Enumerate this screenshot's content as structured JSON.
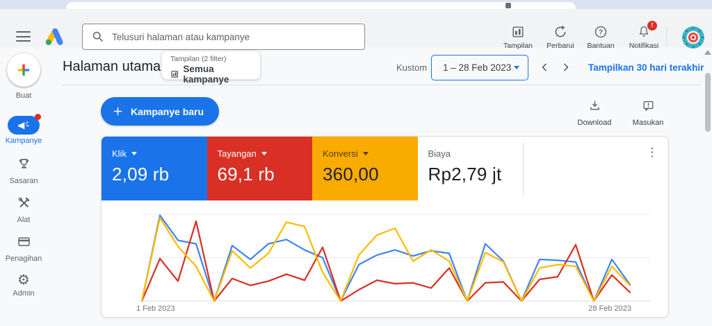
{
  "topbar": {
    "search_placeholder": "Telusuri halaman atau kampanye",
    "actions": [
      {
        "label": "Tampilan"
      },
      {
        "label": "Perbarui"
      },
      {
        "label": "Bantuan"
      },
      {
        "label": "Notifikasi",
        "badge": "!"
      }
    ]
  },
  "sidebar": {
    "items": [
      {
        "label": "Buat"
      },
      {
        "label": "Kampanye",
        "active": true
      },
      {
        "label": "Sasaran"
      },
      {
        "label": "Alat"
      },
      {
        "label": "Penagihan"
      },
      {
        "label": "Admin"
      }
    ]
  },
  "header": {
    "title": "Halaman utama",
    "chip_small": "Tampilan (2 filter)",
    "chip_main": "Semua kampanye",
    "custom_label": "Kustom",
    "date_range": "1 – 28 Feb 2023",
    "show_last_link": "Tampilkan 30 hari terakhir"
  },
  "toolbar": {
    "new_campaign": "Kampanye baru",
    "download": "Download",
    "feedback": "Masukan"
  },
  "scorecards": [
    {
      "label": "Klik",
      "value": "2,09 rb",
      "color": "#1a73e8",
      "has_caret": true
    },
    {
      "label": "Tayangan",
      "value": "69,1 rb",
      "color": "#d93025",
      "has_caret": true
    },
    {
      "label": "Konversi",
      "value": "360,00",
      "color": "#f9ab00",
      "has_caret": true
    },
    {
      "label": "Biaya",
      "value": "Rp2,79 jt",
      "color": "#ffffff",
      "has_caret": false
    }
  ],
  "colors": {
    "accent_blue": "#1a73e8",
    "line_blue": "#4285f4",
    "line_red": "#d93025",
    "line_yellow": "#fbbc04",
    "badge_red": "#d93025"
  },
  "chart_data": {
    "type": "line",
    "title": "",
    "x_days": [
      1,
      2,
      3,
      4,
      5,
      6,
      7,
      8,
      9,
      10,
      11,
      12,
      13,
      14,
      15,
      16,
      17,
      18,
      19,
      20,
      21,
      22,
      23,
      24,
      25,
      26,
      27,
      28
    ],
    "x_tick_labels": [
      "1 Feb 2023",
      "28 Feb 2023"
    ],
    "ylim": [
      0,
      100
    ],
    "y_units": "relative scale (0–100 of top gridline), axis unlabeled",
    "grid": "3 horizontal gridlines (top, middle, baseline)",
    "legend_position": "none (scorecards act as legend)",
    "series": [
      {
        "name": "Klik",
        "color": "#4285f4",
        "values": [
          0,
          99,
          70,
          66,
          0,
          64,
          48,
          66,
          71,
          59,
          50,
          0,
          42,
          53,
          59,
          52,
          58,
          55,
          0,
          66,
          46,
          0,
          48,
          47,
          45,
          0,
          48,
          19
        ]
      },
      {
        "name": "Tayangan",
        "color": "#d93025",
        "values": [
          0,
          49,
          23,
          92,
          0,
          26,
          18,
          23,
          31,
          24,
          62,
          0,
          13,
          24,
          20,
          21,
          15,
          38,
          0,
          21,
          22,
          0,
          25,
          28,
          65,
          0,
          30,
          10
        ]
      },
      {
        "name": "Konversi",
        "color": "#fbbc04",
        "values": [
          0,
          96,
          63,
          40,
          0,
          58,
          38,
          55,
          91,
          86,
          33,
          0,
          53,
          76,
          84,
          46,
          59,
          46,
          0,
          56,
          45,
          0,
          38,
          42,
          40,
          0,
          40,
          18
        ]
      }
    ]
  }
}
